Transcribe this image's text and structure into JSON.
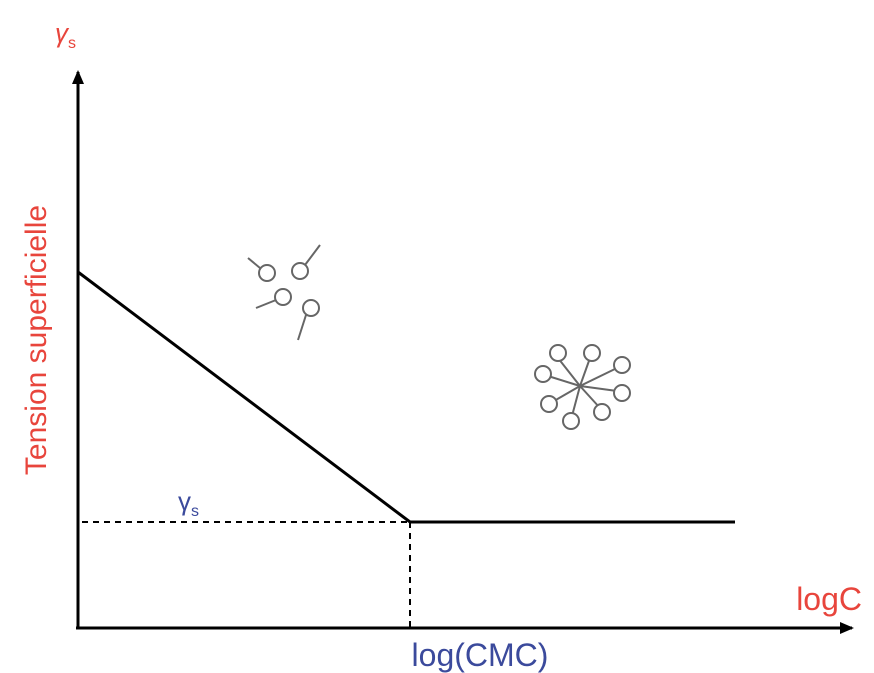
{
  "y_axis": {
    "symbol": "γ",
    "symbol_sub": "s",
    "label": "Tension superficielle"
  },
  "x_axis": {
    "label": "logC"
  },
  "annotations": {
    "gamma_symbol": "γ",
    "gamma_sub": "s",
    "cmc": "log(CMC)"
  }
}
